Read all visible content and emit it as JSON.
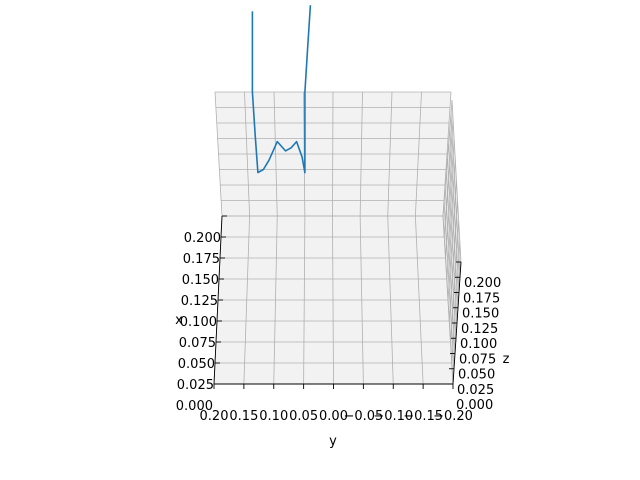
{
  "chart_data": {
    "type": "line",
    "projection": "3d",
    "grid": true,
    "axis_labels": {
      "x": "x",
      "y": "y",
      "z": "z"
    },
    "x_ticks": [
      "0.000",
      "0.025",
      "0.050",
      "0.075",
      "0.100",
      "0.125",
      "0.150",
      "0.175",
      "0.200"
    ],
    "y_ticks": [
      "0.20",
      "0.15",
      "0.10",
      "0.05",
      "0.00",
      "−0.05",
      "−0.10",
      "−0.15",
      "−0.20"
    ],
    "z_ticks": [
      "0.000",
      "0.025",
      "0.050",
      "0.075",
      "0.100",
      "0.125",
      "0.150",
      "0.175",
      "0.200"
    ],
    "series": [
      {
        "color": "#1f77b4",
        "points": [
          {
            "y": 0.145,
            "z": 0.33
          },
          {
            "y": 0.145,
            "z": 0.27
          },
          {
            "y": 0.145,
            "z": 0.2
          },
          {
            "y": 0.14,
            "z": 0.13
          },
          {
            "y": 0.135,
            "z": 0.07
          },
          {
            "y": 0.125,
            "z": 0.075
          },
          {
            "y": 0.115,
            "z": 0.09
          },
          {
            "y": 0.1,
            "z": 0.12
          },
          {
            "y": 0.085,
            "z": 0.105
          },
          {
            "y": 0.075,
            "z": 0.11
          },
          {
            "y": 0.065,
            "z": 0.12
          },
          {
            "y": 0.055,
            "z": 0.095
          },
          {
            "y": 0.05,
            "z": 0.07
          },
          {
            "y": 0.05,
            "z": 0.13
          },
          {
            "y": 0.05,
            "z": 0.2
          },
          {
            "y": 0.045,
            "z": 0.27
          },
          {
            "y": 0.04,
            "z": 0.34
          }
        ]
      }
    ]
  }
}
